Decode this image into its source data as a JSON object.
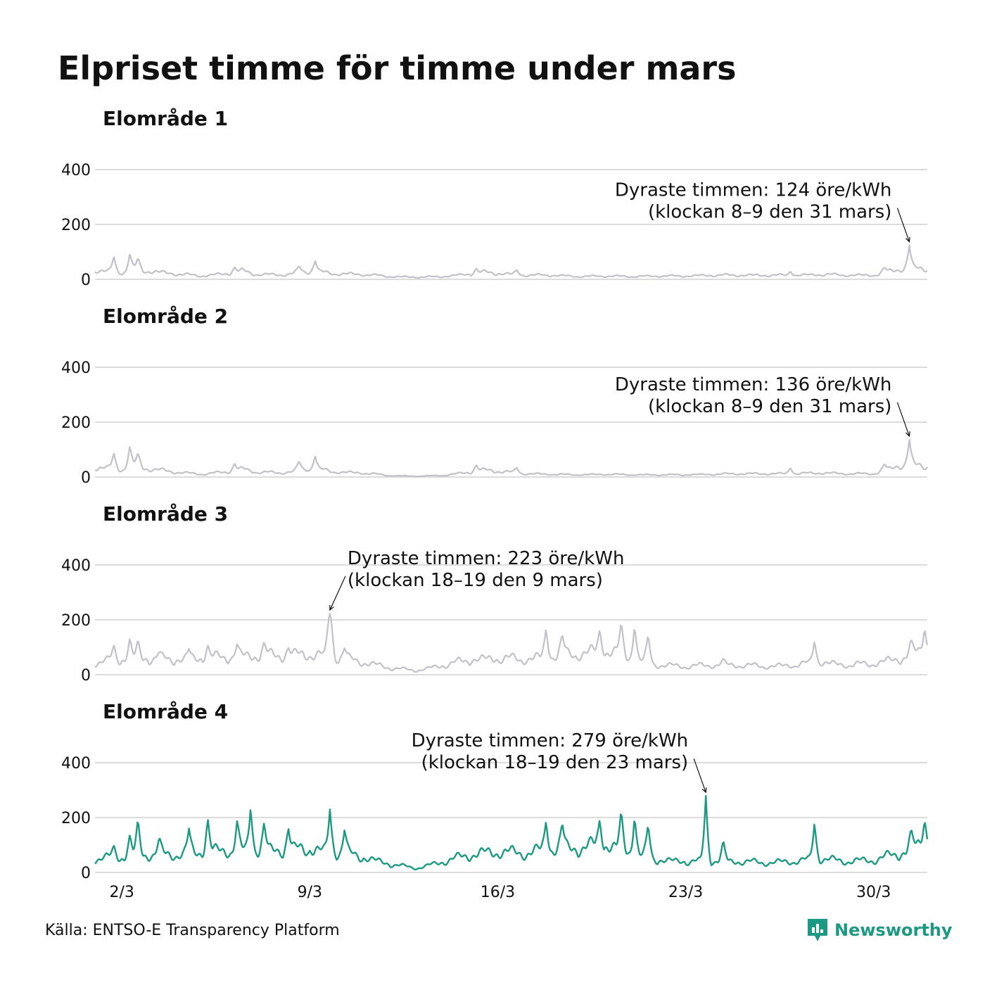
{
  "title": "Elpriset timme för timme under mars",
  "source": "Källa: ENTSO-E Transparency Platform",
  "brand": "Newsworthy",
  "colors": {
    "muted": "#c1c1c8",
    "highlight": "#1b9982",
    "grid": "#dcdcdc"
  },
  "chart_data": [
    {
      "type": "line",
      "title": "Elområde 1",
      "unit": "öre/kWh",
      "ylim": [
        0,
        450
      ],
      "yticks": [
        0,
        200,
        400
      ],
      "yticklabels": [
        "0",
        "200",
        "400"
      ],
      "xticks": [
        2,
        9,
        16,
        23,
        30
      ],
      "xticklabels": [],
      "highlight": false,
      "base": [
        [
          1,
          32
        ],
        [
          2,
          25
        ],
        [
          2.5,
          35
        ],
        [
          3,
          30
        ],
        [
          4,
          20
        ],
        [
          5,
          12
        ],
        [
          6,
          22
        ],
        [
          6.5,
          30
        ],
        [
          7,
          18
        ],
        [
          8,
          16
        ],
        [
          9,
          30
        ],
        [
          9.5,
          25
        ],
        [
          10,
          20
        ],
        [
          11,
          18
        ],
        [
          12,
          10
        ],
        [
          13,
          8
        ],
        [
          14,
          10
        ],
        [
          15,
          20
        ],
        [
          15.5,
          25
        ],
        [
          16,
          22
        ],
        [
          17,
          15
        ],
        [
          18,
          15
        ],
        [
          19,
          10
        ],
        [
          20,
          12
        ],
        [
          21,
          10
        ],
        [
          22,
          12
        ],
        [
          23,
          12
        ],
        [
          24,
          15
        ],
        [
          25,
          15
        ],
        [
          26,
          15
        ],
        [
          27,
          14
        ],
        [
          28,
          18
        ],
        [
          29,
          15
        ],
        [
          30,
          15
        ],
        [
          30.5,
          25
        ],
        [
          31,
          40
        ],
        [
          32,
          40
        ]
      ],
      "peaks": [
        [
          1.7,
          85
        ],
        [
          2.3,
          95
        ],
        [
          2.6,
          80
        ],
        [
          6.2,
          45
        ],
        [
          8.6,
          50
        ],
        [
          9.2,
          70
        ],
        [
          15.2,
          40
        ],
        [
          16.7,
          35
        ],
        [
          26.9,
          30
        ],
        [
          30.4,
          45
        ]
      ],
      "peak": {
        "x": 31.33,
        "value": 124
      },
      "annotation": {
        "line1": "Dyraste timmen: 124 öre/kWh",
        "line2": "(klockan 8–9 den 31 mars)",
        "anchor": "end",
        "side": "left"
      }
    },
    {
      "type": "line",
      "title": "Elområde 2",
      "unit": "öre/kWh",
      "ylim": [
        0,
        450
      ],
      "yticks": [
        0,
        200,
        400
      ],
      "yticklabels": [
        "0",
        "200",
        "400"
      ],
      "xticks": [
        2,
        9,
        16,
        23,
        30
      ],
      "xticklabels": [],
      "highlight": false,
      "base": [
        [
          1,
          35
        ],
        [
          2,
          28
        ],
        [
          2.5,
          40
        ],
        [
          3,
          30
        ],
        [
          4,
          18
        ],
        [
          5,
          10
        ],
        [
          6,
          20
        ],
        [
          6.5,
          30
        ],
        [
          7,
          18
        ],
        [
          8,
          15
        ],
        [
          9,
          30
        ],
        [
          9.5,
          25
        ],
        [
          10,
          18
        ],
        [
          11,
          15
        ],
        [
          12,
          5
        ],
        [
          13,
          3
        ],
        [
          14,
          6
        ],
        [
          15,
          18
        ],
        [
          15.5,
          25
        ],
        [
          16,
          22
        ],
        [
          17,
          12
        ],
        [
          18,
          10
        ],
        [
          19,
          8
        ],
        [
          20,
          10
        ],
        [
          21,
          8
        ],
        [
          22,
          8
        ],
        [
          23,
          8
        ],
        [
          24,
          10
        ],
        [
          25,
          12
        ],
        [
          26,
          12
        ],
        [
          27,
          12
        ],
        [
          28,
          15
        ],
        [
          29,
          12
        ],
        [
          30,
          12
        ],
        [
          30.5,
          25
        ],
        [
          31,
          45
        ],
        [
          32,
          40
        ]
      ],
      "peaks": [
        [
          1.7,
          90
        ],
        [
          2.3,
          115
        ],
        [
          2.6,
          90
        ],
        [
          6.2,
          50
        ],
        [
          8.6,
          60
        ],
        [
          9.2,
          80
        ],
        [
          15.2,
          45
        ],
        [
          16.7,
          35
        ],
        [
          26.9,
          35
        ],
        [
          30.4,
          50
        ]
      ],
      "peak": {
        "x": 31.33,
        "value": 136
      },
      "annotation": {
        "line1": "Dyraste timmen: 136 öre/kWh",
        "line2": "(klockan 8–9 den 31 mars)",
        "anchor": "end",
        "side": "left"
      }
    },
    {
      "type": "line",
      "title": "Elområde 3",
      "unit": "öre/kWh",
      "ylim": [
        0,
        450
      ],
      "yticks": [
        0,
        200,
        400
      ],
      "yticklabels": [
        "0",
        "200",
        "400"
      ],
      "xticks": [
        2,
        9,
        16,
        23,
        30
      ],
      "xticklabels": [],
      "highlight": false,
      "base": [
        [
          1,
          45
        ],
        [
          2,
          55
        ],
        [
          3,
          60
        ],
        [
          4,
          55
        ],
        [
          5,
          60
        ],
        [
          6,
          65
        ],
        [
          7,
          70
        ],
        [
          8,
          70
        ],
        [
          9,
          75
        ],
        [
          10,
          65
        ],
        [
          11,
          45
        ],
        [
          12,
          25
        ],
        [
          13,
          15
        ],
        [
          14,
          35
        ],
        [
          15,
          55
        ],
        [
          16,
          60
        ],
        [
          17,
          55
        ],
        [
          18,
          70
        ],
        [
          19,
          75
        ],
        [
          20,
          90
        ],
        [
          21,
          60
        ],
        [
          22,
          35
        ],
        [
          23,
          30
        ],
        [
          24,
          35
        ],
        [
          25,
          35
        ],
        [
          26,
          30
        ],
        [
          27,
          35
        ],
        [
          28,
          45
        ],
        [
          29,
          35
        ],
        [
          30,
          40
        ],
        [
          31,
          60
        ],
        [
          32,
          90
        ]
      ],
      "peaks": [
        [
          1.7,
          110
        ],
        [
          2.3,
          135
        ],
        [
          2.6,
          130
        ],
        [
          3.4,
          85
        ],
        [
          4.5,
          95
        ],
        [
          5.2,
          110
        ],
        [
          6.3,
          115
        ],
        [
          7.3,
          120
        ],
        [
          8.2,
          100
        ],
        [
          9.75,
          223
        ],
        [
          10.3,
          100
        ],
        [
          17.8,
          170
        ],
        [
          18.4,
          150
        ],
        [
          19.8,
          165
        ],
        [
          20.6,
          195
        ],
        [
          21.1,
          185
        ],
        [
          21.6,
          150
        ],
        [
          24.4,
          60
        ],
        [
          27.8,
          125
        ],
        [
          31.4,
          130
        ],
        [
          31.9,
          175
        ]
      ],
      "peak": {
        "x": 9.75,
        "value": 223
      },
      "annotation": {
        "line1": "Dyraste timmen: 223 öre/kWh",
        "line2": "(klockan 18–19 den 9 mars)",
        "anchor": "start",
        "side": "right"
      }
    },
    {
      "type": "line",
      "title": "Elområde 4",
      "unit": "öre/kWh",
      "ylim": [
        0,
        450
      ],
      "yticks": [
        0,
        200,
        400
      ],
      "yticklabels": [
        "0",
        "200",
        "400"
      ],
      "xticks": [
        2,
        9,
        16,
        23,
        30
      ],
      "xticklabels": [
        "2/3",
        "9/3",
        "16/3",
        "23/3",
        "30/3"
      ],
      "highlight": true,
      "base": [
        [
          1,
          50
        ],
        [
          2,
          55
        ],
        [
          3,
          65
        ],
        [
          4,
          65
        ],
        [
          5,
          75
        ],
        [
          6,
          80
        ],
        [
          7,
          80
        ],
        [
          8,
          80
        ],
        [
          9,
          85
        ],
        [
          10,
          75
        ],
        [
          11,
          55
        ],
        [
          12,
          30
        ],
        [
          13,
          15
        ],
        [
          14,
          40
        ],
        [
          15,
          65
        ],
        [
          16,
          75
        ],
        [
          17,
          70
        ],
        [
          18,
          85
        ],
        [
          19,
          90
        ],
        [
          20,
          100
        ],
        [
          21,
          70
        ],
        [
          22,
          45
        ],
        [
          23,
          40
        ],
        [
          24,
          40
        ],
        [
          25,
          40
        ],
        [
          26,
          35
        ],
        [
          27,
          40
        ],
        [
          28,
          50
        ],
        [
          29,
          40
        ],
        [
          30,
          45
        ],
        [
          31,
          70
        ],
        [
          32,
          110
        ]
      ],
      "peaks": [
        [
          1.7,
          100
        ],
        [
          2.3,
          140
        ],
        [
          2.6,
          200
        ],
        [
          3.4,
          130
        ],
        [
          4.5,
          160
        ],
        [
          5.2,
          200
        ],
        [
          6.3,
          195
        ],
        [
          6.8,
          240
        ],
        [
          7.3,
          185
        ],
        [
          8.2,
          165
        ],
        [
          9.75,
          230
        ],
        [
          10.3,
          160
        ],
        [
          17.8,
          190
        ],
        [
          18.4,
          185
        ],
        [
          19.8,
          195
        ],
        [
          20.6,
          230
        ],
        [
          21.1,
          210
        ],
        [
          21.6,
          180
        ],
        [
          24.4,
          120
        ],
        [
          27.8,
          185
        ],
        [
          31.4,
          160
        ],
        [
          31.9,
          195
        ]
      ],
      "peak": {
        "x": 23.75,
        "value": 279
      },
      "annotation": {
        "line1": "Dyraste timmen: 279 öre/kWh",
        "line2": "(klockan 18–19 den 23 mars)",
        "anchor": "end",
        "side": "left"
      }
    }
  ]
}
